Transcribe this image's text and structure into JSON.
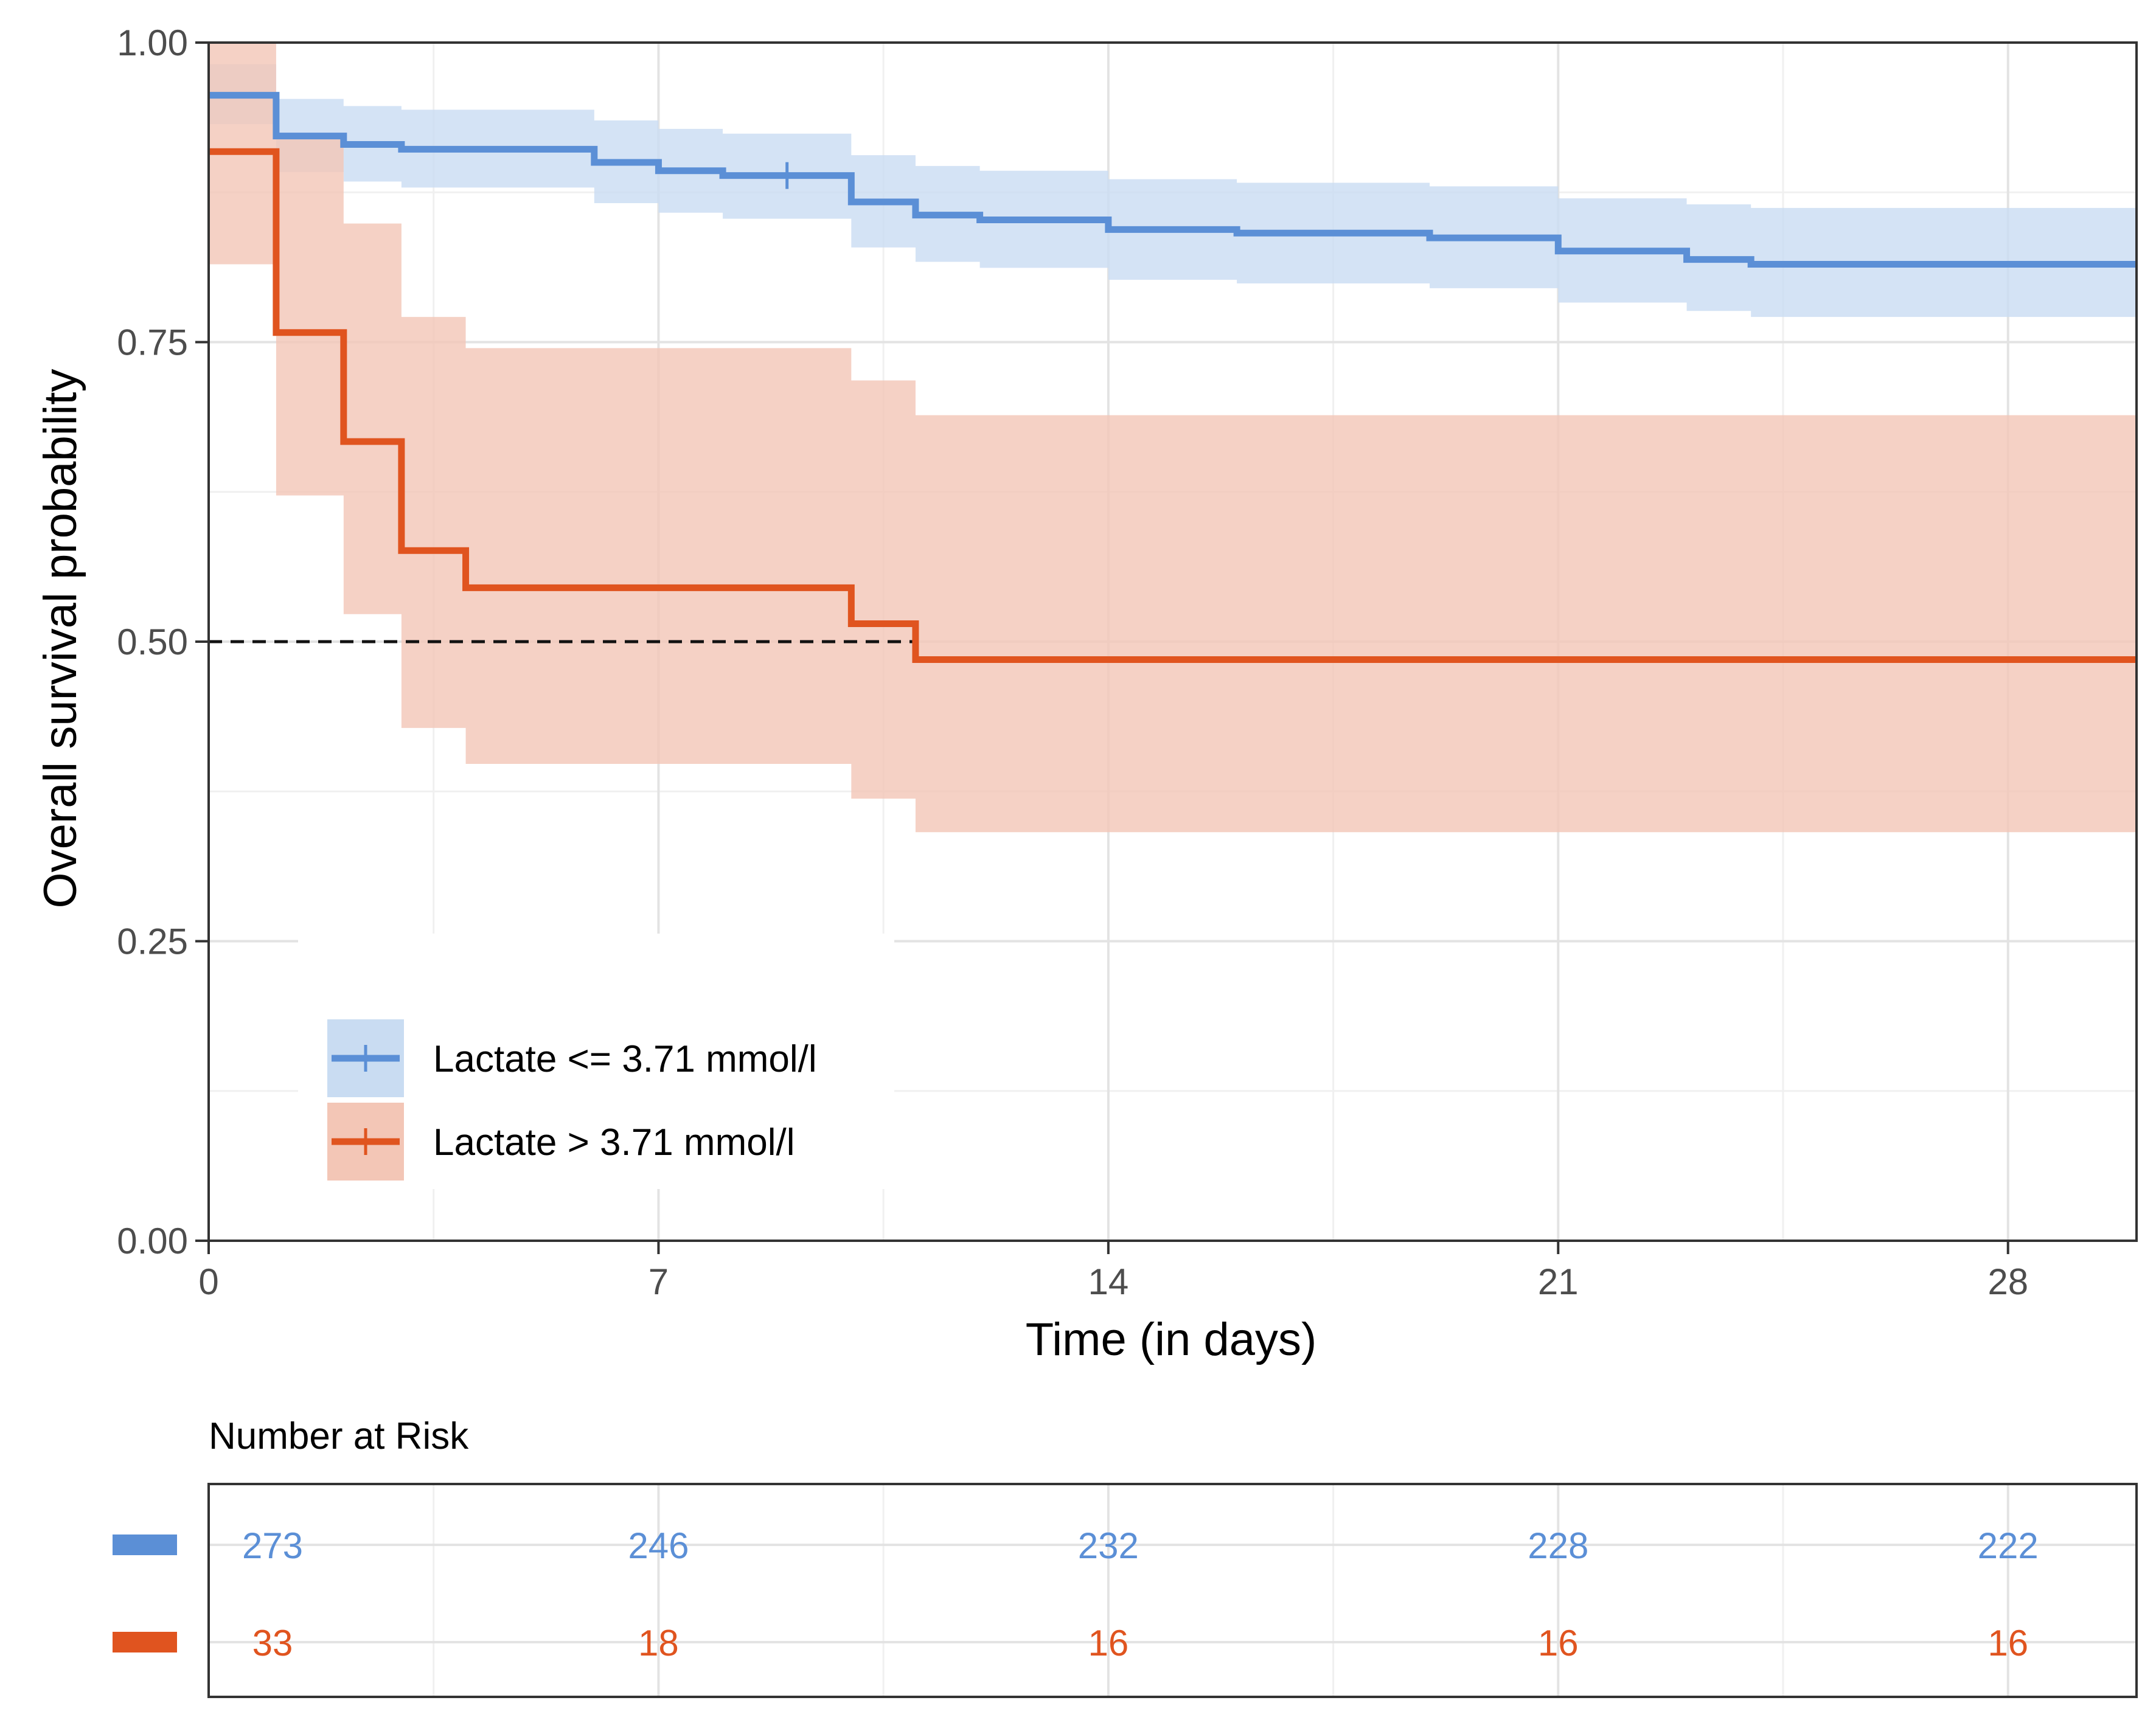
{
  "colors": {
    "low": "#5b8fd6",
    "high": "#e0541f",
    "low_band": "#c9dcf2",
    "high_band": "#f3c6b6",
    "axis": "#333333",
    "grid_major": "#e3e3e3",
    "grid_minor": "#f0f0f0"
  },
  "chart_data": {
    "type": "line",
    "subtype": "kaplan-meier step curve with confidence bands",
    "xlabel": "Time (in days)",
    "ylabel": "Overall survival probability",
    "xlim": [
      0,
      30
    ],
    "ylim": [
      0,
      1
    ],
    "x_ticks": [
      0,
      7,
      14,
      21,
      28
    ],
    "x_tick_labels": [
      "0",
      "7",
      "14",
      "21",
      "28"
    ],
    "y_ticks": [
      0,
      0.25,
      0.5,
      0.75,
      1
    ],
    "y_tick_labels": [
      "0.00",
      "0.25",
      "0.50",
      "0.75",
      "1.00"
    ],
    "median_reference_line": 0.5,
    "legend_position": "bottom-left",
    "series": [
      {
        "name": "Lactate <= 3.71 mmol/l",
        "color_key": "low",
        "steps": [
          [
            0,
            0.956,
            0.932,
            0.982
          ],
          [
            1.05,
            0.922,
            0.892,
            0.953
          ],
          [
            2.1,
            0.915,
            0.884,
            0.947
          ],
          [
            3.0,
            0.911,
            0.879,
            0.944
          ],
          [
            6.0,
            0.9,
            0.866,
            0.935
          ],
          [
            7.0,
            0.893,
            0.858,
            0.928
          ],
          [
            8.0,
            0.889,
            0.853,
            0.924
          ],
          [
            10.0,
            0.867,
            0.829,
            0.906
          ],
          [
            11.0,
            0.856,
            0.817,
            0.897
          ],
          [
            12.0,
            0.852,
            0.812,
            0.893
          ],
          [
            14.0,
            0.844,
            0.802,
            0.886
          ],
          [
            16.0,
            0.841,
            0.799,
            0.883
          ],
          [
            19.0,
            0.837,
            0.795,
            0.88
          ],
          [
            21.0,
            0.826,
            0.783,
            0.87
          ],
          [
            23.0,
            0.819,
            0.776,
            0.865
          ],
          [
            24.0,
            0.815,
            0.771,
            0.862
          ],
          [
            30.0,
            0.815,
            0.771,
            0.862
          ]
        ],
        "censor_marks": [
          [
            9.0,
            0.889
          ]
        ]
      },
      {
        "name": "Lactate > 3.71 mmol/l",
        "color_key": "high",
        "steps": [
          [
            0,
            0.909,
            0.815,
            1.0
          ],
          [
            1.05,
            0.758,
            0.622,
            0.922
          ],
          [
            2.1,
            0.667,
            0.523,
            0.849
          ],
          [
            3.0,
            0.576,
            0.428,
            0.771
          ],
          [
            4.0,
            0.545,
            0.398,
            0.745
          ],
          [
            10.0,
            0.515,
            0.369,
            0.718
          ],
          [
            11.0,
            0.485,
            0.341,
            0.689
          ],
          [
            30.0,
            0.485,
            0.341,
            0.689
          ]
        ],
        "censor_marks": []
      }
    ],
    "risk_table": {
      "title": "Number at Risk",
      "times": [
        0,
        7,
        14,
        21,
        28
      ],
      "rows": [
        {
          "name": "Lactate <= 3.71 mmol/l",
          "color_key": "low",
          "values": [
            "273",
            "246",
            "232",
            "228",
            "222"
          ]
        },
        {
          "name": "Lactate > 3.71 mmol/l",
          "color_key": "high",
          "values": [
            "33",
            "18",
            "16",
            "16",
            "16"
          ]
        }
      ]
    }
  }
}
